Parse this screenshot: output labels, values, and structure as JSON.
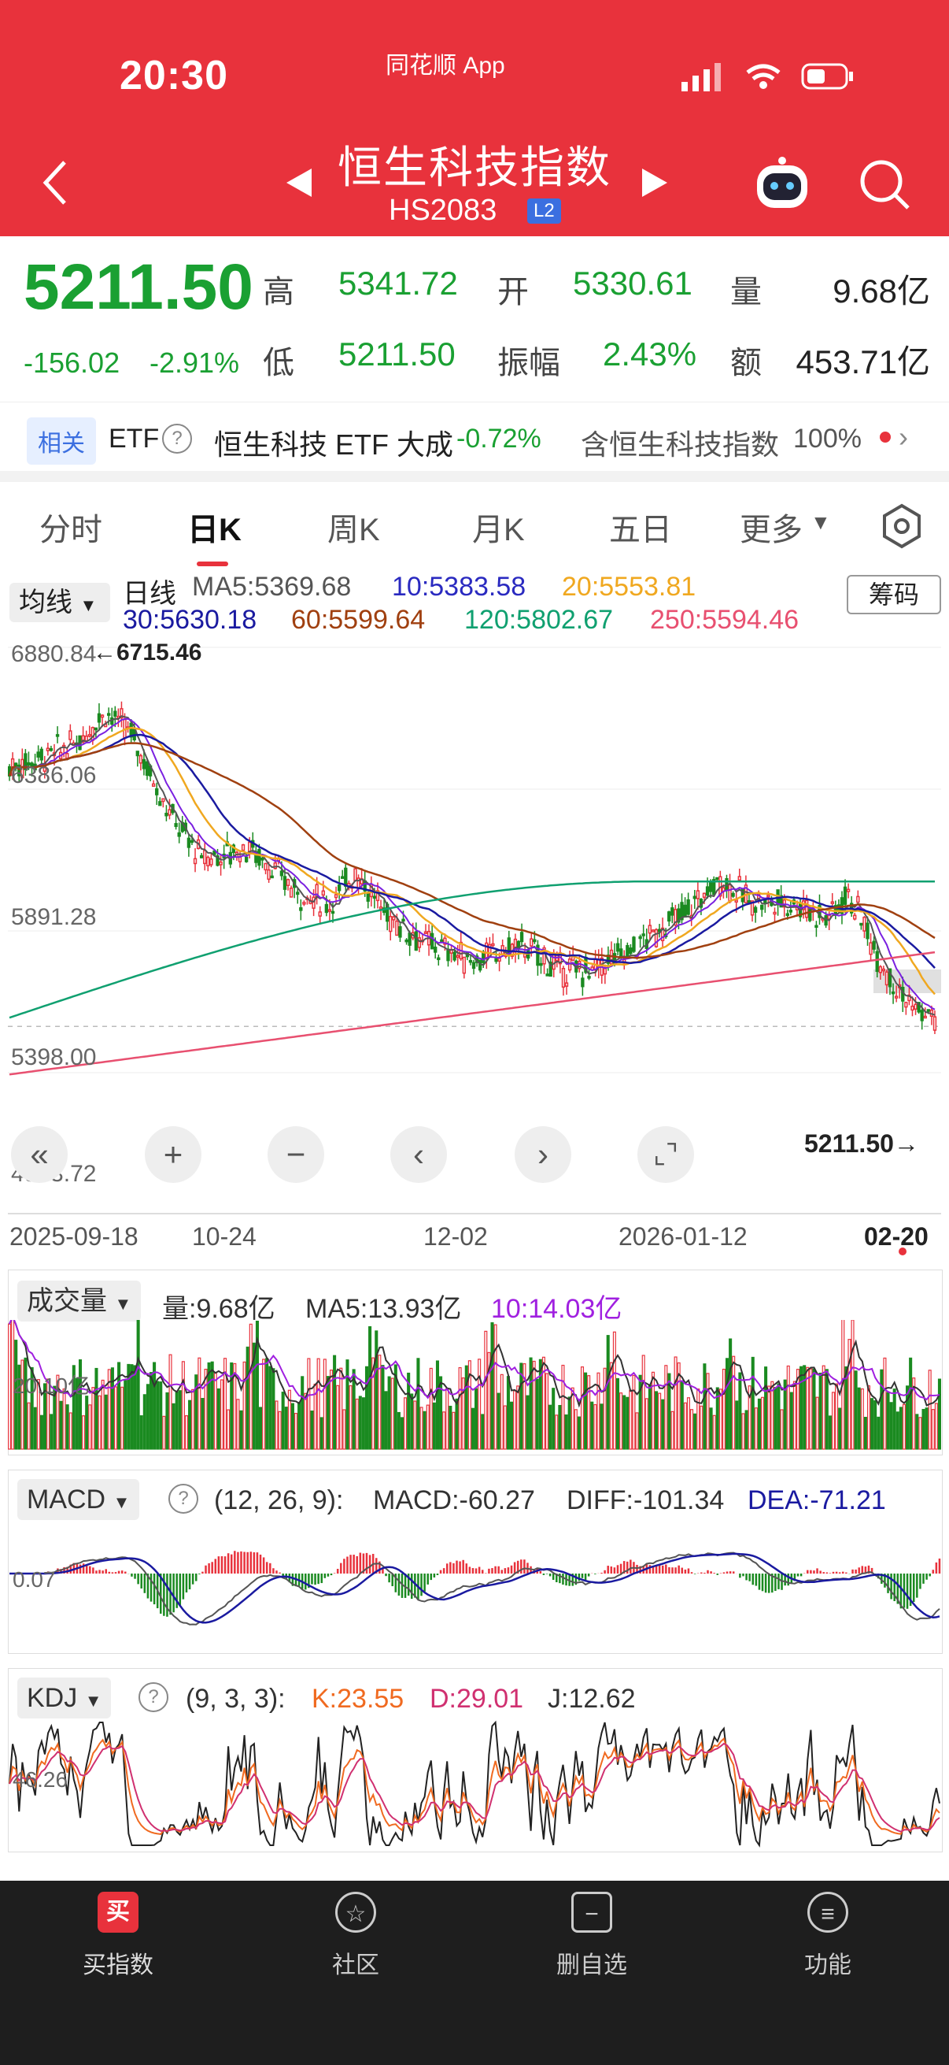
{
  "status_bar": {
    "time": "20:30",
    "app_label": "同花顺 App"
  },
  "header": {
    "title": "恒生科技指数",
    "code": "HS2083",
    "badge": "L2",
    "icons": [
      "back-icon",
      "prev-arrow-icon",
      "next-arrow-icon",
      "robot-icon",
      "search-icon"
    ]
  },
  "quote": {
    "price": "5211.50",
    "change": "-156.02",
    "change_pct": "-2.91%",
    "high_label": "高",
    "high": "5341.72",
    "open_label": "开",
    "open": "5330.61",
    "volume_label": "量",
    "volume": "9.68亿",
    "low_label": "低",
    "low": "5211.50",
    "amplitude_label": "振幅",
    "amplitude": "2.43%",
    "amount_label": "额",
    "amount": "453.71亿"
  },
  "related": {
    "tag": "相关",
    "etf": "ETF",
    "fund_name": "恒生科技 ETF 大成",
    "fund_change": "-0.72%",
    "holding_text": "含恒生科技指数",
    "holding_pct": "100%"
  },
  "tabs": [
    "分时",
    "日K",
    "周K",
    "月K",
    "五日",
    "更多"
  ],
  "ma_panel": {
    "dropdown": "均线",
    "period": "日线",
    "chip_button": "筹码",
    "ma5": "MA5:5369.68",
    "ma10": "10:5383.58",
    "ma20": "20:5553.81",
    "ma30": "30:5630.18",
    "ma60": "60:5599.64",
    "ma120": "120:5802.67",
    "ma250": "250:5594.46",
    "colors": {
      "ma5": "#555555",
      "ma10": "#1a1aa0",
      "ma20": "#f0a820",
      "ma30": "#1a1aa0",
      "ma60": "#a04010",
      "ma120": "#10a070",
      "ma250": "#e85070"
    }
  },
  "price_axis": {
    "max_label": "6880.84",
    "high_mark": "6715.46",
    "l2": "6386.06",
    "l3": "5891.28",
    "l4": "5398.00",
    "min_label": "4903.72",
    "last_label": "5211.50"
  },
  "date_axis": [
    "2025-09-18",
    "10-24",
    "12-02",
    "2026-01-12",
    "02-20"
  ],
  "volume_panel": {
    "dropdown": "成交量",
    "vol": "量:9.68亿",
    "ma5": "MA5:13.93亿",
    "ma10": "10:14.03亿",
    "axis_label": "20.10亿"
  },
  "macd_panel": {
    "dropdown": "MACD",
    "params": "(12, 26, 9):",
    "macd": "MACD:-60.27",
    "diff": "DIFF:-101.34",
    "dea": "DEA:-71.21",
    "axis_label": "0.07"
  },
  "kdj_panel": {
    "dropdown": "KDJ",
    "params": "(9, 3, 3):",
    "k": "K:23.55",
    "d": "D:29.01",
    "j": "J:12.62",
    "axis_label": "46.26"
  },
  "bottom_nav": [
    "买指数",
    "社区",
    "删自选",
    "功能"
  ]
}
